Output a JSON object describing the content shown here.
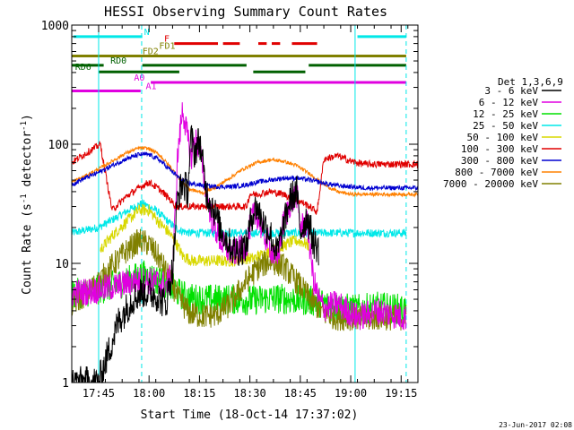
{
  "chart_data": {
    "type": "line",
    "title": "HESSI Observing Summary Count Rates",
    "xlabel": "Start Time (18-Oct-14 17:37:02)",
    "ylabel_main": "Count Rate (s",
    "ylabel_sup1": "-1",
    "ylabel_mid": " detector",
    "ylabel_sup2": "-1",
    "ylabel_end": ")",
    "footer": "23-Jun-2017 02:08",
    "y_scale": "log",
    "xlim_minutes": [
      37.0,
      140.0
    ],
    "ylim": [
      1,
      1000
    ],
    "x_ticks": [
      {
        "m": 45,
        "label": "17:45"
      },
      {
        "m": 60,
        "label": "18:00"
      },
      {
        "m": 75,
        "label": "18:15"
      },
      {
        "m": 90,
        "label": "18:30"
      },
      {
        "m": 105,
        "label": "18:45"
      },
      {
        "m": 120,
        "label": "19:00"
      },
      {
        "m": 135,
        "label": "19:15"
      }
    ],
    "y_ticks": [
      {
        "v": 1,
        "label": "1"
      },
      {
        "v": 10,
        "label": "10"
      },
      {
        "v": 100,
        "label": "100"
      },
      {
        "v": 1000,
        "label": "1000"
      }
    ],
    "legend_title": "Det 1,3,6,9",
    "series": [
      {
        "name": "3 - 6 keV",
        "color": "#000000",
        "key": "s1"
      },
      {
        "name": "6 - 12 keV",
        "color": "#e000e0",
        "key": "s2"
      },
      {
        "name": "12 - 25 keV",
        "color": "#00e000",
        "key": "s3"
      },
      {
        "name": "25 - 50 keV",
        "color": "#00e8e8",
        "key": "s4"
      },
      {
        "name": "50 - 100 keV",
        "color": "#d8d800",
        "key": "s5"
      },
      {
        "name": "100 - 300 keV",
        "color": "#e00000",
        "key": "s6"
      },
      {
        "name": "300 - 800 keV",
        "color": "#0000d0",
        "key": "s7"
      },
      {
        "name": "800 - 7000 keV",
        "color": "#ff8000",
        "key": "s8"
      },
      {
        "name": "7000 - 20000 keV",
        "color": "#808000",
        "key": "s9"
      }
    ],
    "flag_bars": [
      {
        "label": "N",
        "color": "#00e8e8",
        "level": 800,
        "segments": [
          [
            37.5,
            58.0
          ],
          [
            122.0,
            136.5
          ]
        ],
        "label_at": 58.5
      },
      {
        "label": "F",
        "color": "#e00000",
        "level": 700,
        "segments": [
          [
            67.5,
            80.5
          ],
          [
            82.0,
            87.0
          ],
          [
            92.5,
            95.0
          ],
          [
            96.5,
            99.0
          ],
          [
            102.5,
            110.0
          ]
        ],
        "label_at": 64.5
      },
      {
        "label": "FD1",
        "color": "#808000",
        "level": 610,
        "segments": [],
        "label_at": 63.0
      },
      {
        "label": "FD2",
        "color": "#808000",
        "level": 550,
        "segments": [
          [
            37.0,
            136.5
          ]
        ],
        "label_at": 58.0
      },
      {
        "label": "RD0",
        "color": "#006000",
        "level": 460,
        "segments": [
          [
            37.0,
            46.5
          ],
          [
            58.0,
            89.0
          ],
          [
            107.5,
            136.5
          ]
        ],
        "label_at": 48.5
      },
      {
        "label": "RD6",
        "color": "#006000",
        "level": 405,
        "segments": [
          [
            45.0,
            69.0
          ],
          [
            91.0,
            106.5
          ]
        ],
        "label_at": 38.0
      },
      {
        "label": "A0",
        "color": "#e000e0",
        "level": 330,
        "segments": [
          [
            60.5,
            136.5
          ]
        ],
        "label_at": 55.5
      },
      {
        "label": "A1",
        "color": "#e000e0",
        "level": 280,
        "segments": [
          [
            37.0,
            57.5
          ]
        ],
        "label_at": 59.0
      }
    ],
    "vlines": [
      {
        "m": 45.0,
        "color": "#00e8e8",
        "style": "solid"
      },
      {
        "m": 57.8,
        "color": "#00e8e8",
        "style": "dashed"
      },
      {
        "m": 121.3,
        "color": "#00e8e8",
        "style": "solid"
      },
      {
        "m": 136.5,
        "color": "#00e8e8",
        "style": "dashed"
      }
    ],
    "data": {
      "s1": {
        "x": [
          37,
          45,
          51,
          55,
          58,
          62,
          65,
          67,
          68.5,
          70,
          71.5,
          72.5,
          73.5,
          75,
          77,
          79,
          81,
          83,
          85,
          87,
          89,
          90.5,
          92,
          94,
          96,
          98,
          100,
          102,
          104,
          105,
          107,
          109,
          110.5
        ],
        "y": [
          1.0,
          1.0,
          3.3,
          5.0,
          5.8,
          5.5,
          4.5,
          9.0,
          35,
          48,
          40,
          115,
          85,
          110,
          40,
          30,
          20,
          16,
          13,
          13,
          14,
          25,
          30,
          22,
          18,
          12,
          20,
          35,
          40,
          18,
          25,
          15,
          13
        ]
      },
      "s2": {
        "x": [
          37,
          45,
          50,
          55,
          58,
          62,
          65,
          67,
          68.5,
          70,
          71.5,
          72.5,
          73.5,
          75,
          77,
          79,
          81,
          83,
          85,
          87,
          89,
          90.5,
          92,
          94,
          96,
          98,
          100,
          102,
          104,
          105,
          107,
          109,
          110.5,
          112,
          116,
          122,
          128,
          136.5
        ],
        "y": [
          5.6,
          6.0,
          6.4,
          7.0,
          7.2,
          7.0,
          6.6,
          8.0,
          80,
          200,
          110,
          75,
          110,
          95,
          38,
          22,
          16,
          13,
          12,
          13,
          14,
          24,
          26,
          18,
          14,
          10,
          22,
          32,
          38,
          20,
          22,
          7.0,
          5.0,
          4.2,
          4.6,
          3.5,
          4.0,
          3.5
        ]
      },
      "s3": {
        "x": [
          37,
          45,
          50,
          54,
          58,
          62,
          66,
          69,
          72,
          76,
          80,
          85,
          90,
          94,
          98,
          102,
          106,
          110,
          115,
          122,
          128,
          136.5
        ],
        "y": [
          5.5,
          6.0,
          6.6,
          7.2,
          8.0,
          7.4,
          6.5,
          5.6,
          5.1,
          5.0,
          5.0,
          5.0,
          4.9,
          5.0,
          5.1,
          5.0,
          4.9,
          4.8,
          4.3,
          4.1,
          4.3,
          4.1
        ]
      },
      "s4": {
        "x": [
          37,
          45,
          50,
          54,
          58,
          62,
          66,
          69,
          72,
          76,
          80,
          85,
          90,
          94,
          98,
          102,
          106,
          110,
          115,
          122,
          128,
          136.5
        ],
        "y": [
          18,
          20,
          24,
          28,
          32,
          28,
          22,
          19,
          18,
          18,
          18,
          18,
          18,
          18,
          18,
          18,
          18,
          18,
          18,
          18,
          18,
          18
        ]
      },
      "s5": {
        "x": [
          45.5,
          49,
          53,
          57,
          60,
          63,
          66,
          68.5,
          70,
          73,
          76,
          79,
          82,
          85,
          88,
          91,
          94,
          96,
          98,
          100,
          102,
          104,
          106,
          107.5
        ],
        "y": [
          13,
          17,
          22,
          28,
          28,
          22,
          18,
          14,
          11.5,
          10.5,
          10.5,
          10.5,
          10.5,
          10.5,
          11,
          11,
          12,
          12.5,
          13,
          14,
          15,
          15.5,
          15,
          14
        ]
      },
      "s6": {
        "x": [
          37,
          40,
          43,
          45.5,
          49,
          53,
          57,
          60,
          63,
          66,
          68,
          69,
          71,
          75,
          79,
          83,
          87,
          89,
          90,
          92,
          96,
          100,
          104,
          107,
          110,
          112,
          116,
          120,
          124,
          128,
          132,
          136.5,
          140
        ],
        "y": [
          70,
          80,
          90,
          100,
          28,
          36,
          43,
          48,
          42,
          35,
          30,
          30,
          30,
          30,
          30,
          30,
          30,
          30,
          38,
          38,
          40,
          38,
          34,
          31,
          27,
          75,
          80,
          72,
          68,
          68,
          68,
          68,
          68
        ]
      },
      "s7": {
        "x": [
          37,
          41,
          45,
          49,
          53,
          57,
          60,
          63,
          66,
          69,
          72,
          76,
          80,
          84,
          88,
          92,
          96,
          100,
          104,
          108,
          112,
          116,
          120,
          124,
          128,
          132,
          136.5,
          140
        ],
        "y": [
          46,
          52,
          58,
          66,
          75,
          82,
          82,
          74,
          62,
          52,
          47,
          45,
          44,
          44,
          45,
          48,
          50,
          52,
          52,
          50,
          47,
          45,
          44,
          43,
          43,
          43,
          43,
          43
        ]
      },
      "s8": {
        "x": [
          37,
          41,
          45,
          49,
          53,
          57,
          60,
          63,
          66,
          69,
          72,
          76,
          80,
          84,
          88,
          92,
          96,
          100,
          104,
          108,
          112,
          116,
          120,
          124,
          128,
          132,
          136.5,
          140
        ],
        "y": [
          48,
          54,
          62,
          72,
          84,
          93,
          92,
          82,
          66,
          52,
          42,
          39,
          44,
          52,
          62,
          70,
          74,
          72,
          66,
          56,
          46,
          40,
          38,
          38,
          38,
          38,
          38,
          38
        ]
      },
      "s9": {
        "x": [
          37,
          41,
          45,
          49,
          53,
          57,
          60,
          63,
          66,
          69,
          72,
          76,
          80,
          84,
          88,
          92,
          96,
          100,
          104,
          108,
          112,
          116,
          120,
          124,
          128,
          132,
          136.5
        ],
        "y": [
          4.5,
          5.5,
          7.0,
          9.5,
          12.5,
          15.5,
          14.5,
          11,
          7.5,
          5.0,
          3.8,
          3.6,
          3.7,
          4.5,
          6.5,
          9.0,
          10.5,
          9.5,
          7.0,
          5.0,
          3.8,
          3.5,
          3.5,
          3.4,
          3.5,
          3.5,
          3.5
        ]
      }
    }
  }
}
